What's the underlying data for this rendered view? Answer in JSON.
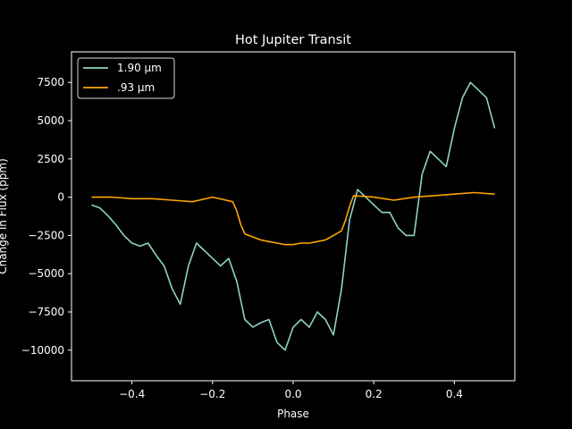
{
  "chart_data": {
    "type": "line",
    "title": "Hot Jupiter Transit",
    "xlabel": "Phase",
    "ylabel": "Change in Flux (ppm)",
    "xlim": [
      -0.55,
      0.55
    ],
    "ylim": [
      -11999,
      9500
    ],
    "xticks": [
      -0.4,
      -0.2,
      0.0,
      0.2,
      0.4
    ],
    "xtick_labels": [
      "−0.4",
      "−0.2",
      "0.0",
      "0.2",
      "0.4"
    ],
    "yticks": [
      -10000,
      -7500,
      -5000,
      -2500,
      0,
      2500,
      5000,
      7500
    ],
    "ytick_labels": [
      "−10000",
      "−7500",
      "−5000",
      "−2500",
      "0",
      "2500",
      "5000",
      "7500"
    ],
    "grid": false,
    "legend_position": "top-left",
    "series": [
      {
        "name": "1.90 µm",
        "color": "#8dd3c7",
        "x": [
          -0.5,
          -0.48,
          -0.46,
          -0.44,
          -0.42,
          -0.4,
          -0.38,
          -0.36,
          -0.34,
          -0.32,
          -0.3,
          -0.28,
          -0.26,
          -0.24,
          -0.22,
          -0.2,
          -0.18,
          -0.16,
          -0.14,
          -0.12,
          -0.1,
          -0.08,
          -0.06,
          -0.04,
          -0.02,
          0.0,
          0.02,
          0.04,
          0.06,
          0.08,
          0.1,
          0.12,
          0.14,
          0.16,
          0.18,
          0.2,
          0.22,
          0.24,
          0.26,
          0.28,
          0.3,
          0.32,
          0.34,
          0.36,
          0.38,
          0.4,
          0.42,
          0.44,
          0.46,
          0.48,
          0.5
        ],
        "y": [
          -500,
          -700,
          -1200,
          -1800,
          -2500,
          -3000,
          -3200,
          -3000,
          -3800,
          -4500,
          -6000,
          -7000,
          -4500,
          -3000,
          -3500,
          -4000,
          -4500,
          -4000,
          -5500,
          -8000,
          -8500,
          -8200,
          -8000,
          -9500,
          -10000,
          -8500,
          -8000,
          -8500,
          -7500,
          -8000,
          -9000,
          -6000,
          -1500,
          500,
          0,
          -500,
          -1000,
          -1000,
          -2000,
          -2500,
          -2500,
          1500,
          3000,
          2500,
          2000,
          4500,
          6500,
          7500,
          7000,
          6500,
          4500
        ]
      },
      {
        "name": ".93 µm",
        "color": "#ffa500",
        "x": [
          -0.5,
          -0.45,
          -0.4,
          -0.35,
          -0.3,
          -0.25,
          -0.2,
          -0.15,
          -0.14,
          -0.13,
          -0.12,
          -0.1,
          -0.08,
          -0.06,
          -0.04,
          -0.02,
          0.0,
          0.02,
          0.04,
          0.06,
          0.08,
          0.1,
          0.12,
          0.13,
          0.14,
          0.15,
          0.2,
          0.25,
          0.3,
          0.35,
          0.4,
          0.45,
          0.5
        ],
        "y": [
          0,
          0,
          -100,
          -100,
          -200,
          -300,
          0,
          -300,
          -900,
          -1800,
          -2400,
          -2600,
          -2800,
          -2900,
          -3000,
          -3100,
          -3100,
          -3000,
          -3000,
          -2900,
          -2800,
          -2500,
          -2200,
          -1500,
          -600,
          100,
          0,
          -200,
          0,
          100,
          200,
          300,
          200
        ]
      }
    ]
  }
}
